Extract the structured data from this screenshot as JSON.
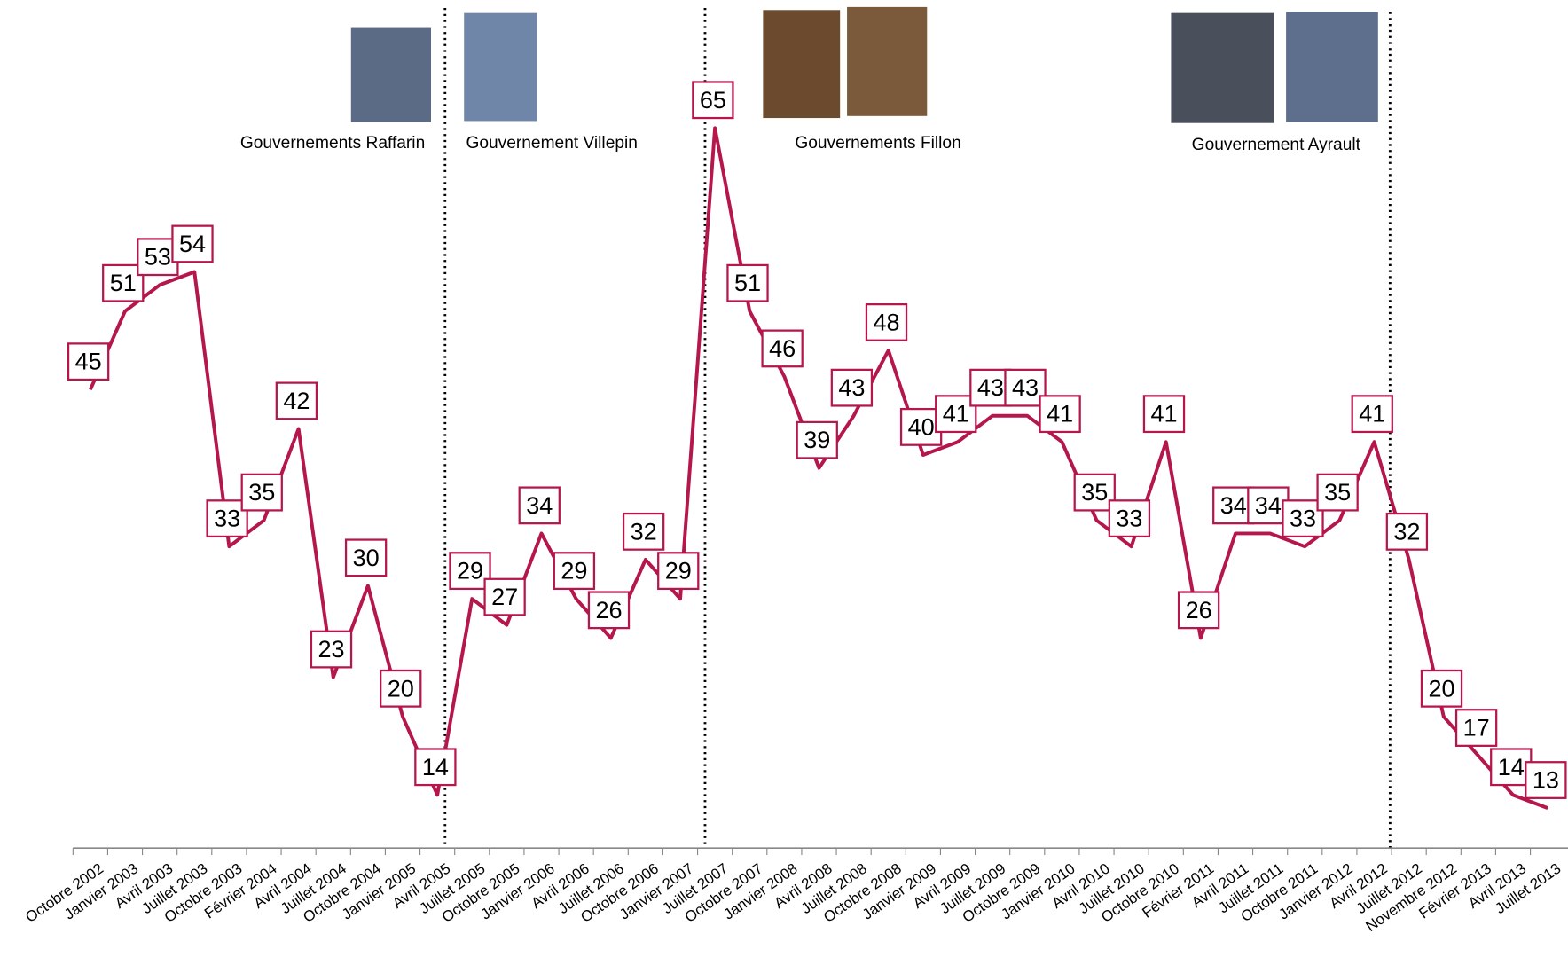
{
  "chart_data": {
    "type": "line",
    "categories": [
      "Octobre 2002",
      "Janvier 2003",
      "Avril 2003",
      "Juillet 2003",
      "Octobre 2003",
      "Février 2004",
      "Avril 2004",
      "Juillet 2004",
      "Octobre 2004",
      "Janvier 2005",
      "Avril 2005",
      "Juillet 2005",
      "Octobre 2005",
      "Janvier 2006",
      "Avril 2006",
      "Juillet 2006",
      "Octobre 2006",
      "Janvier 2007",
      "Juillet 2007",
      "Octobre 2007",
      "Janvier 2008",
      "Avril 2008",
      "Juillet 2008",
      "Octobre 2008",
      "Janvier 2009",
      "Avril 2009",
      "Juillet 2009",
      "Octobre 2009",
      "Janvier 2010",
      "Avril 2010",
      "Juillet 2010",
      "Octobre 2010",
      "Février 2011",
      "Avril 2011",
      "Juillet 2011",
      "Octobre 2011",
      "Janvier 2012",
      "Avril 2012",
      "Juillet 2012",
      "Novembre 2012",
      "Février 2013",
      "Avril 2013",
      "Juillet 2013"
    ],
    "values": [
      45,
      51,
      53,
      54,
      33,
      35,
      42,
      23,
      30,
      20,
      14,
      29,
      27,
      34,
      29,
      26,
      32,
      29,
      65,
      51,
      46,
      39,
      43,
      48,
      40,
      41,
      43,
      43,
      41,
      35,
      33,
      41,
      26,
      34,
      34,
      33,
      35,
      41,
      32,
      20,
      17,
      14,
      13
    ],
    "color": "#b5174a",
    "annotations": [
      "Gouvernements Raffarin",
      "Gouvernement Villepin",
      "Gouvernements Fillon",
      "Gouvernement Ayrault"
    ]
  }
}
